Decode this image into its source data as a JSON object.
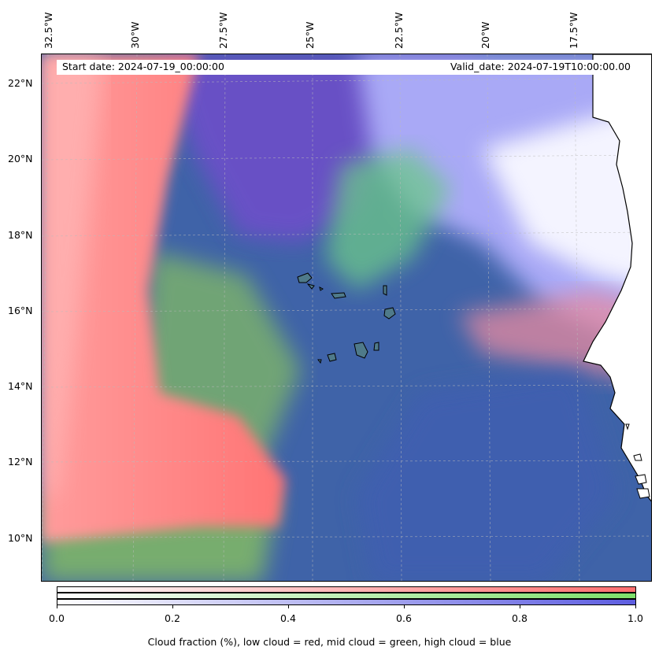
{
  "map": {
    "start_date": "Start date: 2024-07-19_00:00:00",
    "valid_date": "Valid_date: 2024-07-19T10:00:00.00",
    "lon_labels": [
      "32.5°W",
      "30°W",
      "27.5°W",
      "25°W",
      "22.5°W",
      "20°W",
      "17.5°W"
    ],
    "lat_labels": [
      "22°N",
      "20°N",
      "18°N",
      "16°N",
      "14°N",
      "12°N",
      "10°N"
    ],
    "extent": {
      "lon_min": -33.1,
      "lon_max": -15.7,
      "lat_min": 8.9,
      "lat_max": 22.8
    },
    "colors": {
      "low_cloud": "#ff7878",
      "mid_cloud": "#7ee85a",
      "high_cloud": "#4a52d8",
      "clear_ocean": "#3f63a8",
      "land": "#ffffff",
      "coastline": "#000000"
    }
  },
  "colorbar": {
    "ticks": [
      "0.0",
      "0.2",
      "0.4",
      "0.6",
      "0.8",
      "1.0"
    ],
    "label": "Cloud fraction (%), low cloud = red, mid cloud = green, high cloud = blue",
    "gradients": [
      {
        "name": "low cloud",
        "from": "#ffffff",
        "to": "#ff6f6f"
      },
      {
        "name": "mid cloud",
        "from": "#ffffff",
        "to": "#7de06a"
      },
      {
        "name": "high cloud",
        "from": "#ffffff",
        "to": "#5d5de0"
      }
    ]
  }
}
